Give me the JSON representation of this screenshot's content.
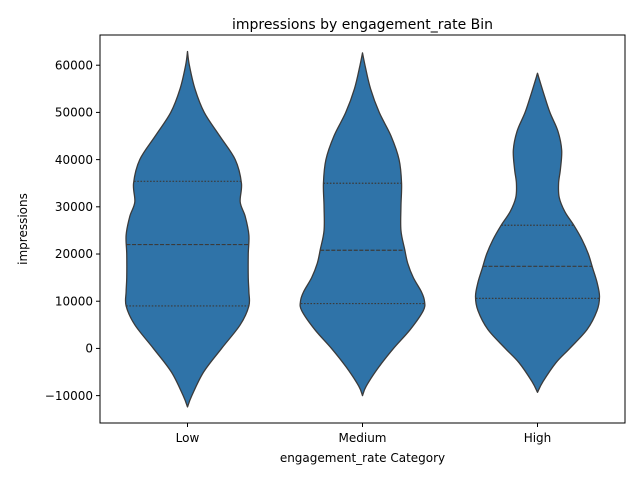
{
  "chart_data": {
    "type": "violin",
    "title": "impressions by engagement_rate Bin",
    "xlabel": "engagement_rate Category",
    "ylabel": "impressions",
    "categories": [
      "Low",
      "Medium",
      "High"
    ],
    "ylim": [
      -15800,
      66400
    ],
    "yticks": [
      -10000,
      0,
      10000,
      20000,
      30000,
      40000,
      50000,
      60000
    ],
    "ytick_labels": [
      "−10000",
      "0",
      "10000",
      "20000",
      "30000",
      "40000",
      "50000",
      "60000"
    ],
    "grid": false,
    "colors": {
      "fill": "#2f73a8",
      "edge": "#3b3b3b",
      "inner": "#3b3b3b"
    },
    "series": [
      {
        "name": "Low",
        "min": -12400,
        "max": 62900,
        "quartiles": [
          9000,
          22000,
          35400
        ],
        "profile": [
          [
            -12400,
            0.0
          ],
          [
            -10000,
            0.07
          ],
          [
            -5000,
            0.26
          ],
          [
            0,
            0.55
          ],
          [
            5000,
            0.85
          ],
          [
            9000,
            0.99
          ],
          [
            12000,
            0.99
          ],
          [
            15000,
            0.98
          ],
          [
            20000,
            0.98
          ],
          [
            24000,
            0.99
          ],
          [
            28000,
            0.93
          ],
          [
            31000,
            0.85
          ],
          [
            35000,
            0.87
          ],
          [
            40000,
            0.77
          ],
          [
            45000,
            0.52
          ],
          [
            50000,
            0.27
          ],
          [
            55000,
            0.12
          ],
          [
            60000,
            0.03
          ],
          [
            62900,
            0.0
          ]
        ]
      },
      {
        "name": "Medium",
        "min": -10000,
        "max": 62600,
        "quartiles": [
          9500,
          20800,
          35000
        ],
        "profile": [
          [
            -10000,
            0.0
          ],
          [
            -8000,
            0.06
          ],
          [
            -4000,
            0.26
          ],
          [
            0,
            0.5
          ],
          [
            4000,
            0.77
          ],
          [
            8000,
            0.98
          ],
          [
            10000,
            1.0
          ],
          [
            12000,
            0.95
          ],
          [
            15000,
            0.82
          ],
          [
            18000,
            0.73
          ],
          [
            21000,
            0.68
          ],
          [
            25000,
            0.62
          ],
          [
            30000,
            0.62
          ],
          [
            35000,
            0.63
          ],
          [
            40000,
            0.59
          ],
          [
            45000,
            0.46
          ],
          [
            50000,
            0.27
          ],
          [
            55000,
            0.13
          ],
          [
            60000,
            0.04
          ],
          [
            62600,
            0.0
          ]
        ]
      },
      {
        "name": "High",
        "min": -9300,
        "max": 58300,
        "quartiles": [
          10600,
          17400,
          26100
        ],
        "profile": [
          [
            -9300,
            0.0
          ],
          [
            -7000,
            0.09
          ],
          [
            -3000,
            0.3
          ],
          [
            0,
            0.52
          ],
          [
            4000,
            0.8
          ],
          [
            8000,
            0.96
          ],
          [
            11000,
            1.0
          ],
          [
            14000,
            0.96
          ],
          [
            17000,
            0.89
          ],
          [
            20000,
            0.82
          ],
          [
            23000,
            0.72
          ],
          [
            26000,
            0.59
          ],
          [
            29000,
            0.44
          ],
          [
            32000,
            0.35
          ],
          [
            35000,
            0.34
          ],
          [
            38000,
            0.37
          ],
          [
            42000,
            0.39
          ],
          [
            46000,
            0.33
          ],
          [
            50000,
            0.2
          ],
          [
            54000,
            0.1
          ],
          [
            58300,
            0.0
          ]
        ]
      }
    ]
  }
}
